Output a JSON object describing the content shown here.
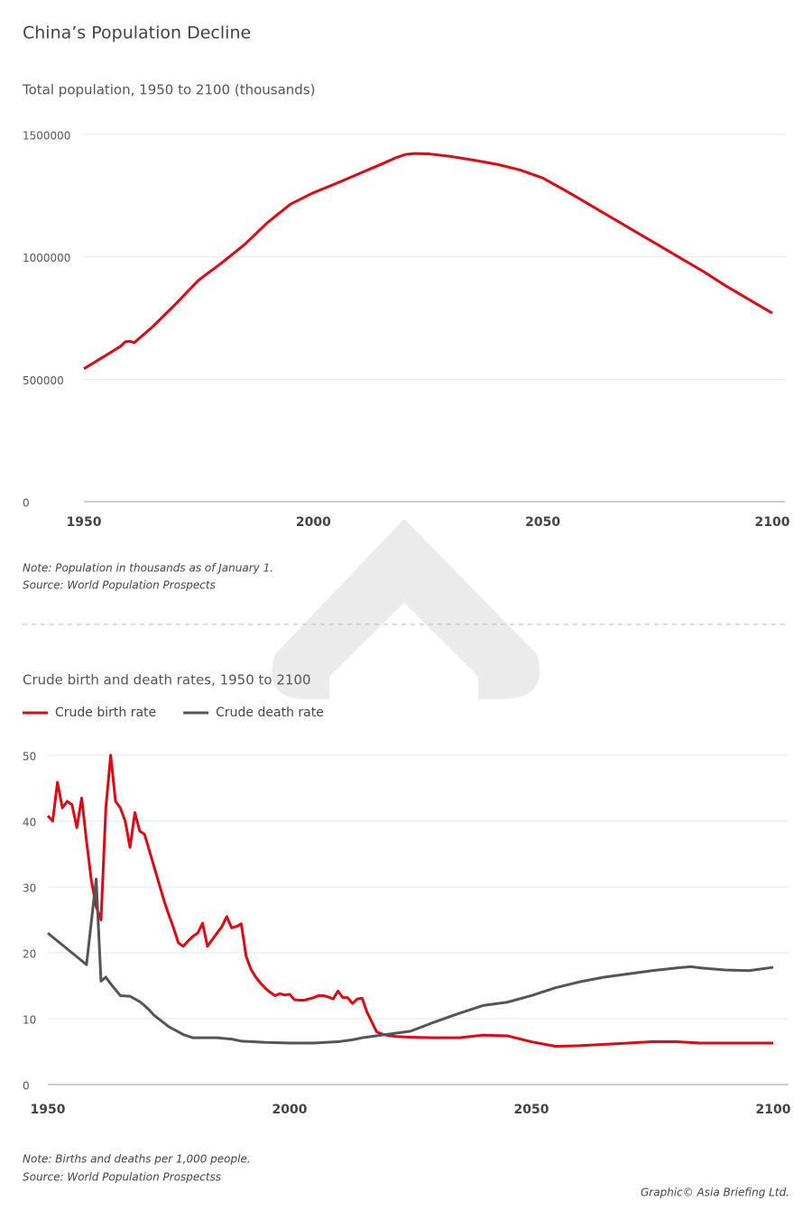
{
  "title": "China’s Population Decline",
  "credit": "Graphic© Asia Briefing Ltd.",
  "chart_data": [
    {
      "type": "line",
      "title": "Total population, 1950 to 2100 (thousands)",
      "note": "Note: Population in thousands as of January 1.",
      "source": "Source: World Population Prospects",
      "x": [
        1950,
        1955,
        1958,
        1959,
        1960,
        1961,
        1965,
        1970,
        1975,
        1980,
        1985,
        1990,
        1995,
        2000,
        2005,
        2010,
        2015,
        2018,
        2020,
        2022,
        2025,
        2030,
        2035,
        2040,
        2045,
        2050,
        2055,
        2060,
        2065,
        2070,
        2075,
        2080,
        2085,
        2090,
        2095,
        2100
      ],
      "values": [
        543000,
        600000,
        635000,
        653000,
        655000,
        650000,
        715000,
        808000,
        905000,
        975000,
        1050000,
        1140000,
        1215000,
        1262000,
        1300000,
        1340000,
        1380000,
        1405000,
        1418000,
        1422000,
        1421000,
        1410000,
        1395000,
        1378000,
        1355000,
        1322000,
        1270000,
        1215000,
        1160000,
        1105000,
        1050000,
        995000,
        940000,
        880000,
        825000,
        770000
      ],
      "color": "#e30613",
      "xlim": [
        1950,
        2100
      ],
      "xticks": [
        1950,
        2000,
        2050,
        2100
      ],
      "ylim": [
        0,
        1500000
      ],
      "yticks": [
        0,
        500000,
        1000000,
        1500000
      ],
      "grid": true
    },
    {
      "type": "line",
      "title": "Crude birth and death rates, 1950 to 2100",
      "note": "Note: Births and deaths per 1,000 people.",
      "source": "Source: World Population Prospectss",
      "legend": "top-left",
      "series": [
        {
          "name": "Crude birth rate",
          "color": "#e30613",
          "x": [
            1950,
            1951,
            1952,
            1953,
            1954,
            1955,
            1956,
            1957,
            1958,
            1959,
            1960,
            1961,
            1962,
            1963,
            1964,
            1965,
            1966,
            1967,
            1968,
            1969,
            1970,
            1971,
            1972,
            1973,
            1974,
            1975,
            1976,
            1977,
            1978,
            1979,
            1980,
            1981,
            1982,
            1983,
            1984,
            1985,
            1986,
            1987,
            1988,
            1989,
            1990,
            1991,
            1992,
            1993,
            1994,
            1995,
            1996,
            1997,
            1998,
            1999,
            2000,
            2001,
            2002,
            2003,
            2004,
            2005,
            2006,
            2007,
            2008,
            2009,
            2010,
            2011,
            2012,
            2013,
            2014,
            2015,
            2016,
            2017,
            2018,
            2019,
            2020,
            2021,
            2022,
            2025,
            2030,
            2035,
            2040,
            2045,
            2050,
            2055,
            2060,
            2065,
            2070,
            2075,
            2080,
            2085,
            2090,
            2095,
            2100
          ],
          "values": [
            40.8,
            40,
            45.9,
            42,
            43,
            42.5,
            39,
            43.5,
            37,
            31,
            27,
            25,
            42,
            50,
            43,
            42,
            40,
            36,
            41.3,
            38.5,
            38,
            35.5,
            33,
            30.5,
            28,
            25.8,
            23.8,
            21.5,
            21,
            21.8,
            22.5,
            23,
            24.5,
            21,
            22,
            23,
            24,
            25.5,
            23.8,
            24,
            24.4,
            19.5,
            17.5,
            16.3,
            15.4,
            14.6,
            14,
            13.5,
            13.8,
            13.6,
            13.7,
            12.9,
            12.8,
            12.8,
            13,
            13.2,
            13.5,
            13.5,
            13.3,
            13,
            14.2,
            13.2,
            13.2,
            12.3,
            13,
            13.1,
            11,
            9.5,
            8,
            7.7,
            7.5,
            7.4,
            7.3,
            7.2,
            7.1,
            7.1,
            7.5,
            7.4,
            6.5,
            5.8,
            5.9,
            6.1,
            6.3,
            6.5,
            6.5,
            6.3,
            6.3,
            6.3,
            6.3
          ]
        },
        {
          "name": "Crude death rate",
          "color": "#555555",
          "x": [
            1950,
            1958,
            1960,
            1961,
            1962,
            1963,
            1965,
            1967,
            1969,
            1970,
            1971,
            1972,
            1975,
            1978,
            1980,
            1985,
            1988,
            1990,
            1995,
            2000,
            2005,
            2010,
            2013,
            2015,
            2020,
            2025,
            2030,
            2035,
            2040,
            2045,
            2050,
            2055,
            2060,
            2065,
            2070,
            2075,
            2080,
            2083,
            2085,
            2090,
            2095,
            2100
          ],
          "values": [
            23,
            18.2,
            31.2,
            15.7,
            16.3,
            15.3,
            13.5,
            13.4,
            12.6,
            12,
            11.3,
            10.5,
            8.8,
            7.6,
            7.1,
            7.1,
            6.9,
            6.6,
            6.4,
            6.3,
            6.3,
            6.5,
            6.8,
            7.1,
            7.6,
            8.1,
            9.5,
            10.8,
            12,
            12.5,
            13.5,
            14.7,
            15.6,
            16.3,
            16.8,
            17.3,
            17.7,
            17.9,
            17.7,
            17.4,
            17.3,
            17.8
          ]
        }
      ],
      "xlim": [
        1950,
        2100
      ],
      "xticks": [
        1950,
        2000,
        2050,
        2100
      ],
      "ylim": [
        0,
        50
      ],
      "yticks": [
        0,
        10,
        20,
        30,
        40,
        50
      ],
      "grid": true
    }
  ]
}
